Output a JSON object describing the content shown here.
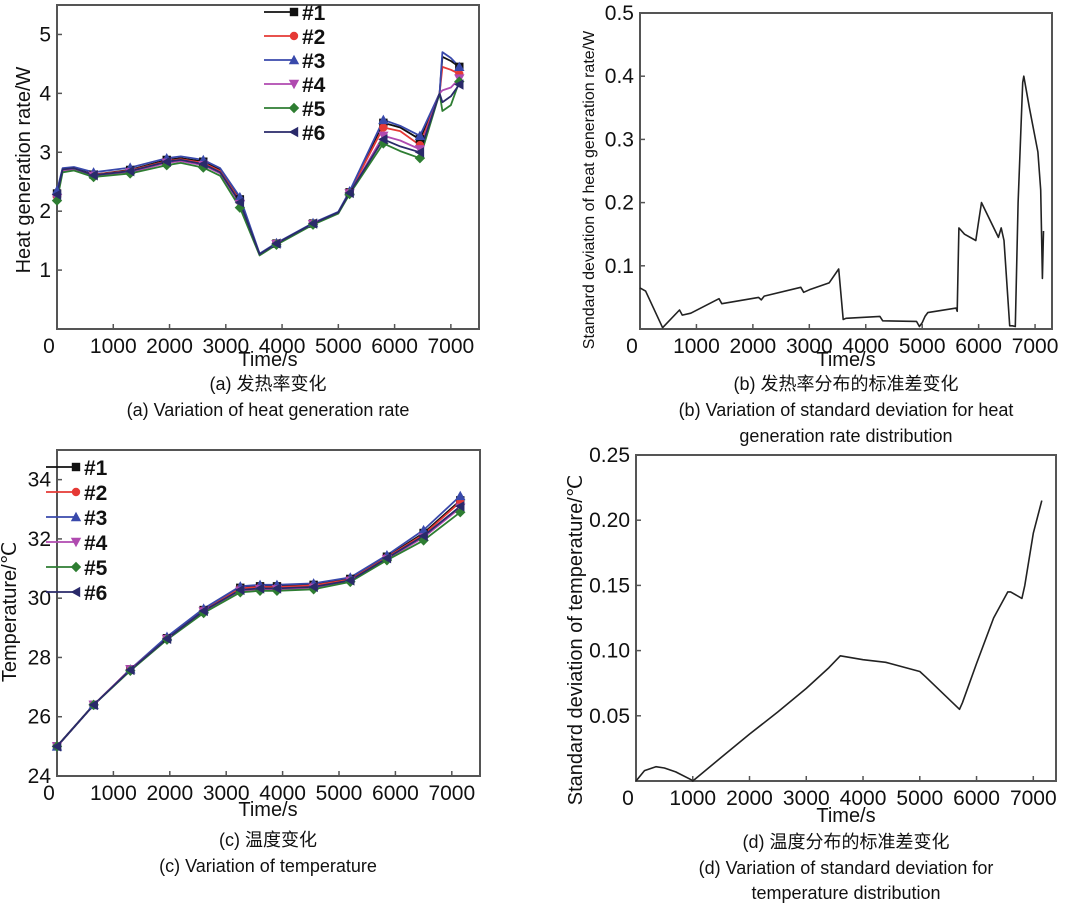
{
  "chart_data": [
    {
      "id": "a",
      "type": "line",
      "title": "",
      "xlabel": "Time/s",
      "ylabel": "Heat generation rate/W",
      "xlim": [
        0,
        7500
      ],
      "ylim": [
        0,
        5.5
      ],
      "xticks": [
        0,
        1000,
        2000,
        3000,
        4000,
        5000,
        6000,
        7000
      ],
      "yticks": [
        1,
        2,
        3,
        4,
        5
      ],
      "grid": false,
      "legend": "top-center",
      "caption_cn": "(a) 发热率变化",
      "caption_en": [
        "(a) Variation of heat generation rate"
      ],
      "series": [
        {
          "name": "#1",
          "color": "#111111",
          "marker": "square",
          "x": [
            0,
            100,
            300,
            650,
            1300,
            1950,
            2200,
            2600,
            2900,
            3250,
            3600,
            3900,
            4550,
            5000,
            5200,
            5800,
            6100,
            6450,
            6800,
            6850,
            7000,
            7150
          ],
          "y": [
            2.3,
            2.72,
            2.74,
            2.62,
            2.7,
            2.87,
            2.9,
            2.84,
            2.7,
            2.2,
            1.27,
            1.45,
            1.79,
            1.98,
            2.32,
            3.5,
            3.42,
            3.22,
            4.0,
            4.62,
            4.55,
            4.45
          ]
        },
        {
          "name": "#2",
          "color": "#e53935",
          "marker": "circle",
          "x": [
            0,
            100,
            300,
            650,
            1300,
            1950,
            2200,
            2600,
            2900,
            3250,
            3600,
            3900,
            4550,
            5000,
            5200,
            5800,
            6100,
            6450,
            6800,
            6850,
            7000,
            7150
          ],
          "y": [
            2.25,
            2.7,
            2.72,
            2.62,
            2.69,
            2.85,
            2.88,
            2.82,
            2.68,
            2.18,
            1.27,
            1.45,
            1.79,
            1.98,
            2.32,
            3.42,
            3.36,
            3.12,
            4.0,
            4.45,
            4.4,
            4.33
          ]
        },
        {
          "name": "#3",
          "color": "#3949ab",
          "marker": "triangle-up",
          "x": [
            0,
            100,
            300,
            650,
            1300,
            1950,
            2200,
            2600,
            2900,
            3250,
            3600,
            3900,
            4550,
            5000,
            5200,
            5800,
            6100,
            6450,
            6800,
            6850,
            7000,
            7150
          ],
          "y": [
            2.35,
            2.73,
            2.75,
            2.66,
            2.74,
            2.9,
            2.93,
            2.87,
            2.73,
            2.24,
            1.28,
            1.46,
            1.8,
            1.99,
            2.34,
            3.55,
            3.45,
            3.28,
            4.0,
            4.7,
            4.6,
            4.45
          ]
        },
        {
          "name": "#4",
          "color": "#b04ab0",
          "marker": "triangle-down",
          "x": [
            0,
            100,
            300,
            650,
            1300,
            1950,
            2200,
            2600,
            2900,
            3250,
            3600,
            3900,
            4550,
            5000,
            5200,
            5800,
            6100,
            6450,
            6800,
            6850,
            7000,
            7150
          ],
          "y": [
            2.22,
            2.68,
            2.7,
            2.6,
            2.66,
            2.82,
            2.85,
            2.78,
            2.64,
            2.12,
            1.26,
            1.44,
            1.78,
            1.97,
            2.3,
            3.28,
            3.2,
            3.05,
            4.0,
            4.05,
            4.1,
            4.25
          ]
        },
        {
          "name": "#5",
          "color": "#2e7d32",
          "marker": "diamond",
          "x": [
            0,
            100,
            300,
            650,
            1300,
            1950,
            2200,
            2600,
            2900,
            3250,
            3600,
            3900,
            4550,
            5000,
            5200,
            5800,
            6100,
            6450,
            6800,
            6850,
            7000,
            7150
          ],
          "y": [
            2.18,
            2.66,
            2.69,
            2.58,
            2.64,
            2.78,
            2.82,
            2.74,
            2.6,
            2.06,
            1.25,
            1.43,
            1.77,
            1.96,
            2.29,
            3.15,
            3.02,
            2.9,
            4.0,
            3.7,
            3.8,
            4.2
          ]
        },
        {
          "name": "#6",
          "color": "#2a2a6a",
          "marker": "triangle-left",
          "x": [
            0,
            100,
            300,
            650,
            1300,
            1950,
            2200,
            2600,
            2900,
            3250,
            3600,
            3900,
            4550,
            5000,
            5200,
            5800,
            6100,
            6450,
            6800,
            6850,
            7000,
            7150
          ],
          "y": [
            2.28,
            2.71,
            2.73,
            2.61,
            2.68,
            2.84,
            2.87,
            2.8,
            2.66,
            2.15,
            1.27,
            1.45,
            1.79,
            1.98,
            2.31,
            3.22,
            3.1,
            3.0,
            4.0,
            3.85,
            3.95,
            4.15
          ]
        }
      ]
    },
    {
      "id": "b",
      "type": "line",
      "title": "",
      "xlabel": "Time/s",
      "ylabel": "Standard deviation of heat generation rate/W",
      "xlim": [
        0,
        7300
      ],
      "ylim": [
        0,
        0.5
      ],
      "xticks": [
        0,
        1000,
        2000,
        3000,
        4000,
        5000,
        6000,
        7000
      ],
      "yticks": [
        0.1,
        0.2,
        0.3,
        0.4,
        0.5
      ],
      "grid": false,
      "legend": "none",
      "caption_cn": "(b) 发热率分布的标准差变化",
      "caption_en": [
        "(b) Variation of standard deviation for heat",
        "generation rate distribution"
      ],
      "series": [
        {
          "name": "std",
          "color": "#222222",
          "x": [
            0,
            100,
            400,
            700,
            750,
            900,
            1400,
            1450,
            2100,
            2150,
            2200,
            2850,
            2900,
            3000,
            3350,
            3520,
            3600,
            3650,
            4250,
            4300,
            4900,
            4950,
            5000,
            5050,
            5100,
            5600,
            5620,
            5650,
            5750,
            5950,
            6000,
            6050,
            6350,
            6400,
            6450,
            6550,
            6600,
            6650,
            6700,
            6780,
            6800,
            6900,
            7050,
            7100,
            7130,
            7150
          ],
          "y": [
            0.065,
            0.06,
            0.002,
            0.03,
            0.022,
            0.025,
            0.048,
            0.04,
            0.05,
            0.046,
            0.052,
            0.066,
            0.058,
            0.062,
            0.073,
            0.095,
            0.015,
            0.017,
            0.02,
            0.013,
            0.012,
            0.004,
            0.01,
            0.02,
            0.026,
            0.033,
            0.028,
            0.16,
            0.15,
            0.14,
            0.17,
            0.2,
            0.145,
            0.16,
            0.14,
            0.005,
            0.005,
            0.004,
            0.2,
            0.39,
            0.4,
            0.35,
            0.28,
            0.22,
            0.08,
            0.155
          ]
        }
      ]
    },
    {
      "id": "c",
      "type": "line",
      "title": "",
      "xlabel": "Time/s",
      "ylabel": "Temperature/℃",
      "xlim": [
        0,
        7500
      ],
      "ylim": [
        24,
        35
      ],
      "xticks": [
        0,
        1000,
        2000,
        3000,
        4000,
        5000,
        6000,
        7000
      ],
      "yticks": [
        24,
        26,
        28,
        30,
        32,
        34
      ],
      "grid": false,
      "legend": "top-left",
      "caption_cn": "(c) 温度变化",
      "caption_en": [
        "(c) Variation of temperature"
      ],
      "series": [
        {
          "name": "#1",
          "color": "#111111",
          "marker": "square",
          "x": [
            0,
            650,
            1300,
            1950,
            2600,
            3250,
            3600,
            3900,
            4550,
            5200,
            5850,
            6500,
            7150
          ],
          "y": [
            25.0,
            26.4,
            27.6,
            28.65,
            29.6,
            30.35,
            30.4,
            30.4,
            30.45,
            30.65,
            31.4,
            32.2,
            33.3
          ]
        },
        {
          "name": "#2",
          "color": "#e53935",
          "marker": "circle",
          "x": [
            0,
            650,
            1300,
            1950,
            2600,
            3250,
            3600,
            3900,
            4550,
            5200,
            5850,
            6500,
            7150
          ],
          "y": [
            25.0,
            26.4,
            27.6,
            28.65,
            29.6,
            30.33,
            30.38,
            30.37,
            30.43,
            30.63,
            31.38,
            32.15,
            33.25
          ]
        },
        {
          "name": "#3",
          "color": "#3949ab",
          "marker": "triangle-up",
          "x": [
            0,
            650,
            1300,
            1950,
            2600,
            3250,
            3600,
            3900,
            4550,
            5200,
            5850,
            6500,
            7150
          ],
          "y": [
            25.0,
            26.4,
            27.6,
            28.7,
            29.65,
            30.4,
            30.45,
            30.45,
            30.5,
            30.7,
            31.45,
            32.3,
            33.45
          ]
        },
        {
          "name": "#4",
          "color": "#b04ab0",
          "marker": "triangle-down",
          "x": [
            0,
            650,
            1300,
            1950,
            2600,
            3250,
            3600,
            3900,
            4550,
            5200,
            5850,
            6500,
            7150
          ],
          "y": [
            25.0,
            26.4,
            27.6,
            28.62,
            29.55,
            30.25,
            30.3,
            30.3,
            30.35,
            30.58,
            31.32,
            32.05,
            33.05
          ]
        },
        {
          "name": "#5",
          "color": "#2e7d32",
          "marker": "diamond",
          "x": [
            0,
            650,
            1300,
            1950,
            2600,
            3250,
            3600,
            3900,
            4550,
            5200,
            5850,
            6500,
            7150
          ],
          "y": [
            25.0,
            26.4,
            27.55,
            28.6,
            29.5,
            30.2,
            30.25,
            30.25,
            30.3,
            30.55,
            31.28,
            31.95,
            32.9
          ]
        },
        {
          "name": "#6",
          "color": "#2a2a6a",
          "marker": "triangle-left",
          "x": [
            0,
            650,
            1300,
            1950,
            2600,
            3250,
            3600,
            3900,
            4550,
            5200,
            5850,
            6500,
            7150
          ],
          "y": [
            25.0,
            26.4,
            27.58,
            28.63,
            29.57,
            30.28,
            30.33,
            30.33,
            30.38,
            30.6,
            31.35,
            32.1,
            33.1
          ]
        }
      ]
    },
    {
      "id": "d",
      "type": "line",
      "title": "",
      "xlabel": "Time/s",
      "ylabel": "Standard deviation of temperature/℃",
      "xlim": [
        0,
        7400
      ],
      "ylim": [
        0,
        0.25
      ],
      "xticks": [
        0,
        1000,
        2000,
        3000,
        4000,
        5000,
        6000,
        7000
      ],
      "ytick_labels": [
        "0.05",
        "0.10",
        "0.15",
        "0.20",
        "0.25"
      ],
      "yticks": [
        0.05,
        0.1,
        0.15,
        0.2,
        0.25
      ],
      "grid": false,
      "legend": "none",
      "caption_cn": "(d) 温度分布的标准差变化",
      "caption_en": [
        "(d) Variation of standard deviation for",
        "temperature distribution"
      ],
      "series": [
        {
          "name": "std",
          "color": "#222222",
          "x": [
            0,
            150,
            350,
            500,
            700,
            970,
            1000,
            1500,
            2000,
            2500,
            3000,
            3400,
            3600,
            4000,
            4400,
            5000,
            5100,
            5700,
            5750,
            6000,
            6300,
            6550,
            6600,
            6800,
            6850,
            7000,
            7150
          ],
          "y": [
            0.0,
            0.008,
            0.011,
            0.01,
            0.007,
            0.001,
            0.0,
            0.018,
            0.036,
            0.053,
            0.071,
            0.087,
            0.096,
            0.093,
            0.091,
            0.084,
            0.08,
            0.055,
            0.06,
            0.09,
            0.125,
            0.145,
            0.145,
            0.14,
            0.15,
            0.19,
            0.215
          ]
        }
      ]
    }
  ]
}
